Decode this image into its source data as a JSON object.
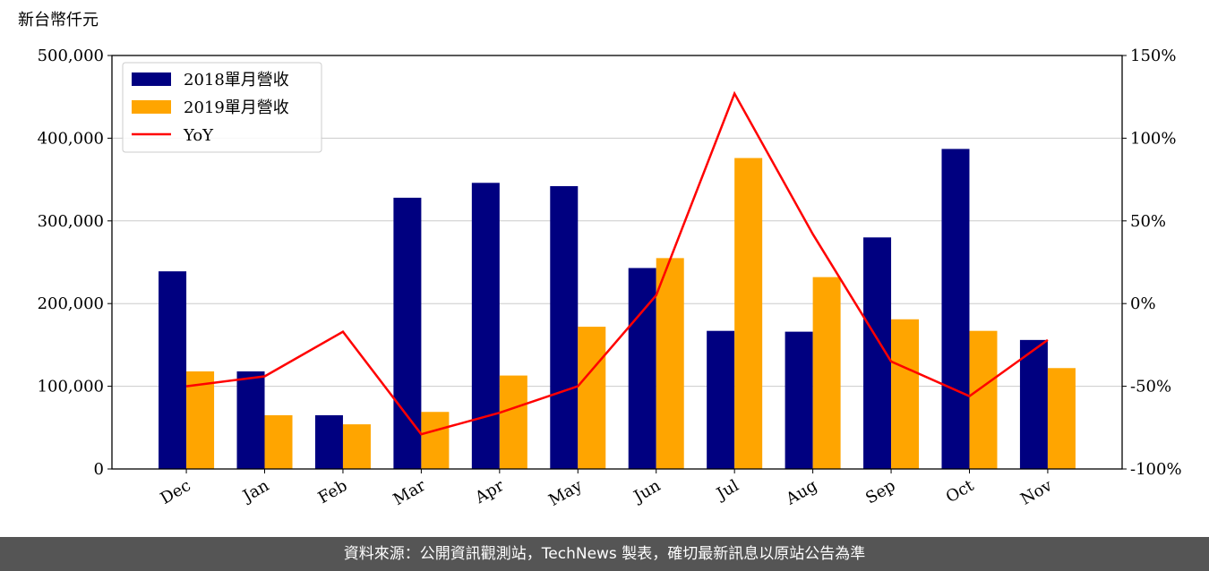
{
  "chart_data": {
    "type": "bar_line",
    "ylabel": "新台幣仟元",
    "categories": [
      "Dec",
      "Jan",
      "Feb",
      "Mar",
      "Apr",
      "May",
      "Jun",
      "Jul",
      "Aug",
      "Sep",
      "Oct",
      "Nov"
    ],
    "series": [
      {
        "name": "2018單月營收",
        "color": "#000080",
        "type": "bar",
        "values": [
          239000,
          118000,
          65000,
          328000,
          346000,
          342000,
          243000,
          167000,
          166000,
          280000,
          387000,
          156000
        ]
      },
      {
        "name": "2019單月營收",
        "color": "#ffa500",
        "type": "bar",
        "values": [
          118000,
          65000,
          54000,
          69000,
          113000,
          172000,
          255000,
          376000,
          232000,
          181000,
          167000,
          122000
        ]
      },
      {
        "name": "YoY",
        "color": "#ff0000",
        "type": "line",
        "axis": "y2",
        "values": [
          -50,
          -44,
          -17,
          -79,
          -66,
          -50,
          5,
          127,
          42,
          -35,
          -56,
          -22
        ]
      }
    ],
    "ylim": [
      0,
      500000
    ],
    "yticks": [
      0,
      {
        "value": 100000,
        "label": "100,000"
      },
      {
        "value": 200000,
        "label": "200,000"
      },
      {
        "value": 300000,
        "label": "300,000"
      },
      {
        "value": 400000,
        "label": "400,000"
      },
      {
        "value": 500000,
        "label": "500,000"
      }
    ],
    "y2lim": [
      -100,
      150
    ],
    "y2ticks": [
      {
        "value": -100,
        "label": "-100%"
      },
      {
        "value": -50,
        "label": "-50%"
      },
      {
        "value": 0,
        "label": "0%"
      },
      {
        "value": 50,
        "label": "50%"
      },
      {
        "value": 100,
        "label": "100%"
      },
      {
        "value": 150,
        "label": "150%"
      }
    ],
    "grid": true,
    "legend": "upper-left"
  },
  "footer": "資料來源：公開資訊觀測站，TechNews 製表，確切最新訊息以原站公告為準"
}
